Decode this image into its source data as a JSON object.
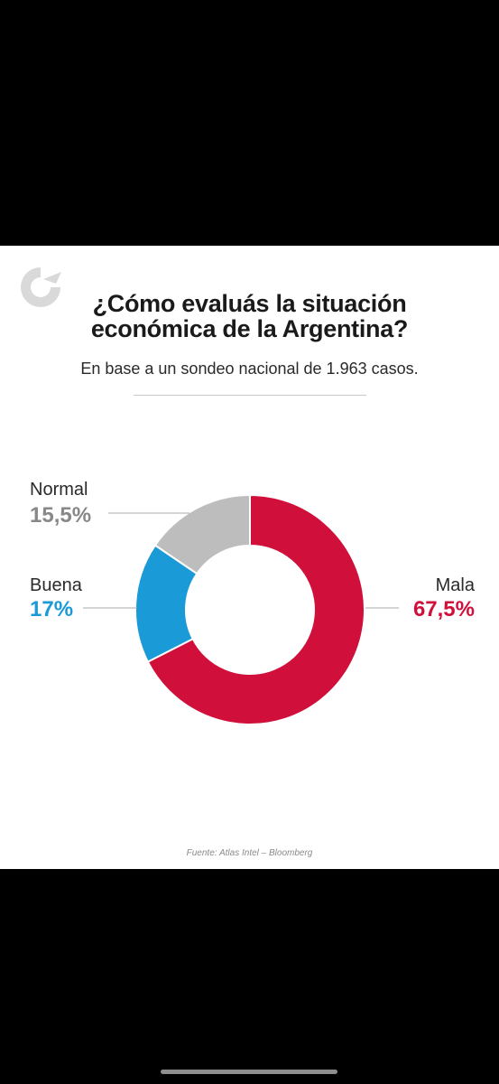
{
  "header": {
    "title_line1": "¿Cómo evaluás la situación",
    "title_line2": "económica de la Argentina?",
    "subtitle": "En base a un sondeo nacional de 1.963 casos."
  },
  "chart_data": {
    "type": "pie",
    "donut": true,
    "slices": [
      {
        "label": "Mala",
        "value": 67.5,
        "value_label": "67,5%",
        "color": "#d0103a"
      },
      {
        "label": "Buena",
        "value": 17,
        "value_label": "17%",
        "color": "#1a9ad6"
      },
      {
        "label": "Normal",
        "value": 15.5,
        "value_label": "15,5%",
        "color": "#bdbdbd"
      }
    ],
    "start": "12 o'clock",
    "direction": "clockwise"
  },
  "footer": {
    "source_label": "Fuente:",
    "source_text": "Atlas Intel – Bloomberg"
  },
  "logo": {
    "icon": "brand-logo-icon",
    "color": "#d9d9d9"
  }
}
